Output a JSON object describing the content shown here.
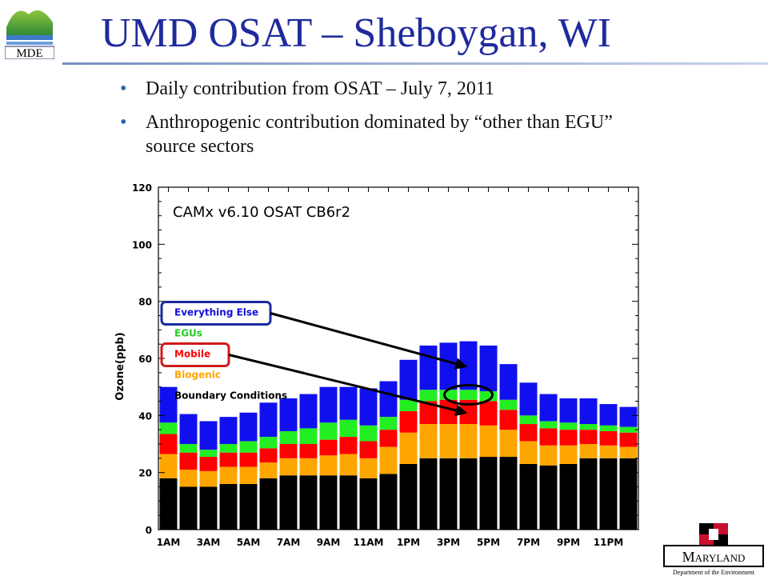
{
  "header": {
    "logo_text": "MDE",
    "title": "UMD OSAT – Sheboygan, WI"
  },
  "bullets": [
    "Daily contribution from OSAT – July 7, 2011",
    "Anthropogenic contribution dominated by “other than EGU” source sectors"
  ],
  "footer_logo": {
    "name": "Maryland",
    "subtitle": "Department of the Environment"
  },
  "chart_data": {
    "type": "bar",
    "stacked": true,
    "title": "CAMx v6.10 OSAT CB6r2",
    "ylabel": "Ozone(ppb)",
    "xlabel": "",
    "ylim": [
      0,
      120
    ],
    "yticks": [
      0,
      20,
      40,
      60,
      80,
      100,
      120
    ],
    "categories": [
      "1AM",
      "2AM",
      "3AM",
      "4AM",
      "5AM",
      "6AM",
      "7AM",
      "8AM",
      "9AM",
      "10AM",
      "11AM",
      "12PM",
      "1PM",
      "2PM",
      "3PM",
      "4PM",
      "5PM",
      "6PM",
      "7PM",
      "8PM",
      "9PM",
      "10PM",
      "11PM",
      "12AM"
    ],
    "tick_labels": [
      "1AM",
      "3AM",
      "5AM",
      "7AM",
      "9AM",
      "11AM",
      "1PM",
      "3PM",
      "5PM",
      "7PM",
      "9PM",
      "11PM"
    ],
    "legend_position": "left",
    "series": [
      {
        "name": "Boundary Conditions",
        "color": "#000000",
        "values": [
          18,
          15,
          15,
          16,
          16,
          18,
          19,
          19,
          19,
          19,
          18,
          19.5,
          23,
          25,
          25,
          25,
          25.5,
          25.5,
          23,
          22.5,
          23,
          25,
          25,
          25
        ]
      },
      {
        "name": "Biogenic",
        "color": "#ffa500",
        "values": [
          8.5,
          6,
          5.5,
          6,
          6,
          5.5,
          6,
          6,
          7,
          7.5,
          7,
          9.5,
          11,
          12,
          12,
          12,
          11,
          9.5,
          8,
          7,
          6.5,
          5,
          4.5,
          4
        ]
      },
      {
        "name": "Mobile",
        "color": "#ff0000",
        "values": [
          7,
          6,
          5,
          5,
          5,
          5,
          5,
          5,
          5.5,
          6,
          6,
          6,
          7.5,
          8,
          8.5,
          8.5,
          8.5,
          7,
          6,
          6,
          5.5,
          5,
          5,
          5
        ]
      },
      {
        "name": "EGUs",
        "color": "#22ee22",
        "values": [
          4,
          3,
          2.5,
          3,
          4,
          4,
          4.5,
          5.5,
          6,
          6,
          5.5,
          4.5,
          4,
          4,
          3.5,
          3.5,
          3.5,
          3.5,
          3,
          2.5,
          2.5,
          2,
          2,
          2
        ]
      },
      {
        "name": "Everything Else",
        "color": "#1010ee",
        "values": [
          12.5,
          10.5,
          10,
          9.5,
          10,
          12,
          11.5,
          12,
          12.5,
          11.5,
          13,
          12.5,
          14,
          15.5,
          16.5,
          17,
          16,
          12.5,
          11.5,
          9.5,
          8.5,
          9,
          7.5,
          7
        ]
      }
    ]
  }
}
